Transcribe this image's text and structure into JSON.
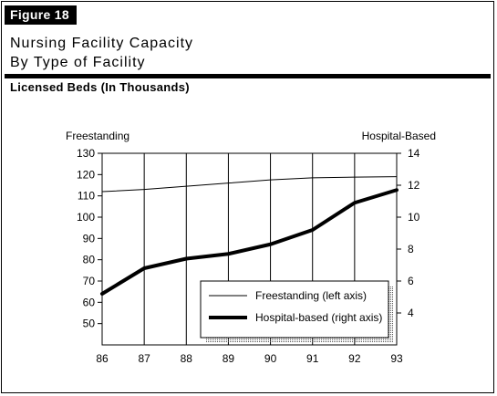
{
  "figure_label": "Figure 18",
  "title_line1": "Nursing Facility Capacity",
  "title_line2": "By Type of Facility",
  "subtitle": "Licensed Beds (In Thousands)",
  "chart_data": {
    "type": "line",
    "x": [
      "86",
      "87",
      "88",
      "89",
      "90",
      "91",
      "92",
      "93"
    ],
    "left_axis": {
      "label": "Freestanding",
      "ylim": [
        40,
        130
      ],
      "ticks": [
        50,
        60,
        70,
        80,
        90,
        100,
        110,
        120,
        130
      ]
    },
    "right_axis": {
      "label": "Hospital-Based",
      "ylim": [
        2,
        14
      ],
      "ticks": [
        4,
        6,
        8,
        10,
        12,
        14
      ]
    },
    "series": [
      {
        "name": "Freestanding (left axis)",
        "axis": "left",
        "stroke": "thin",
        "values": [
          112,
          113,
          114.5,
          116,
          117.5,
          118.5,
          118.8,
          119
        ]
      },
      {
        "name": "Hospital-based (right axis)",
        "axis": "right",
        "stroke": "thick",
        "values": [
          5.2,
          6.8,
          7.4,
          7.7,
          8.3,
          9.2,
          10.9,
          11.7
        ]
      }
    ],
    "grid": "vertical",
    "legend_position": "bottom-right"
  }
}
